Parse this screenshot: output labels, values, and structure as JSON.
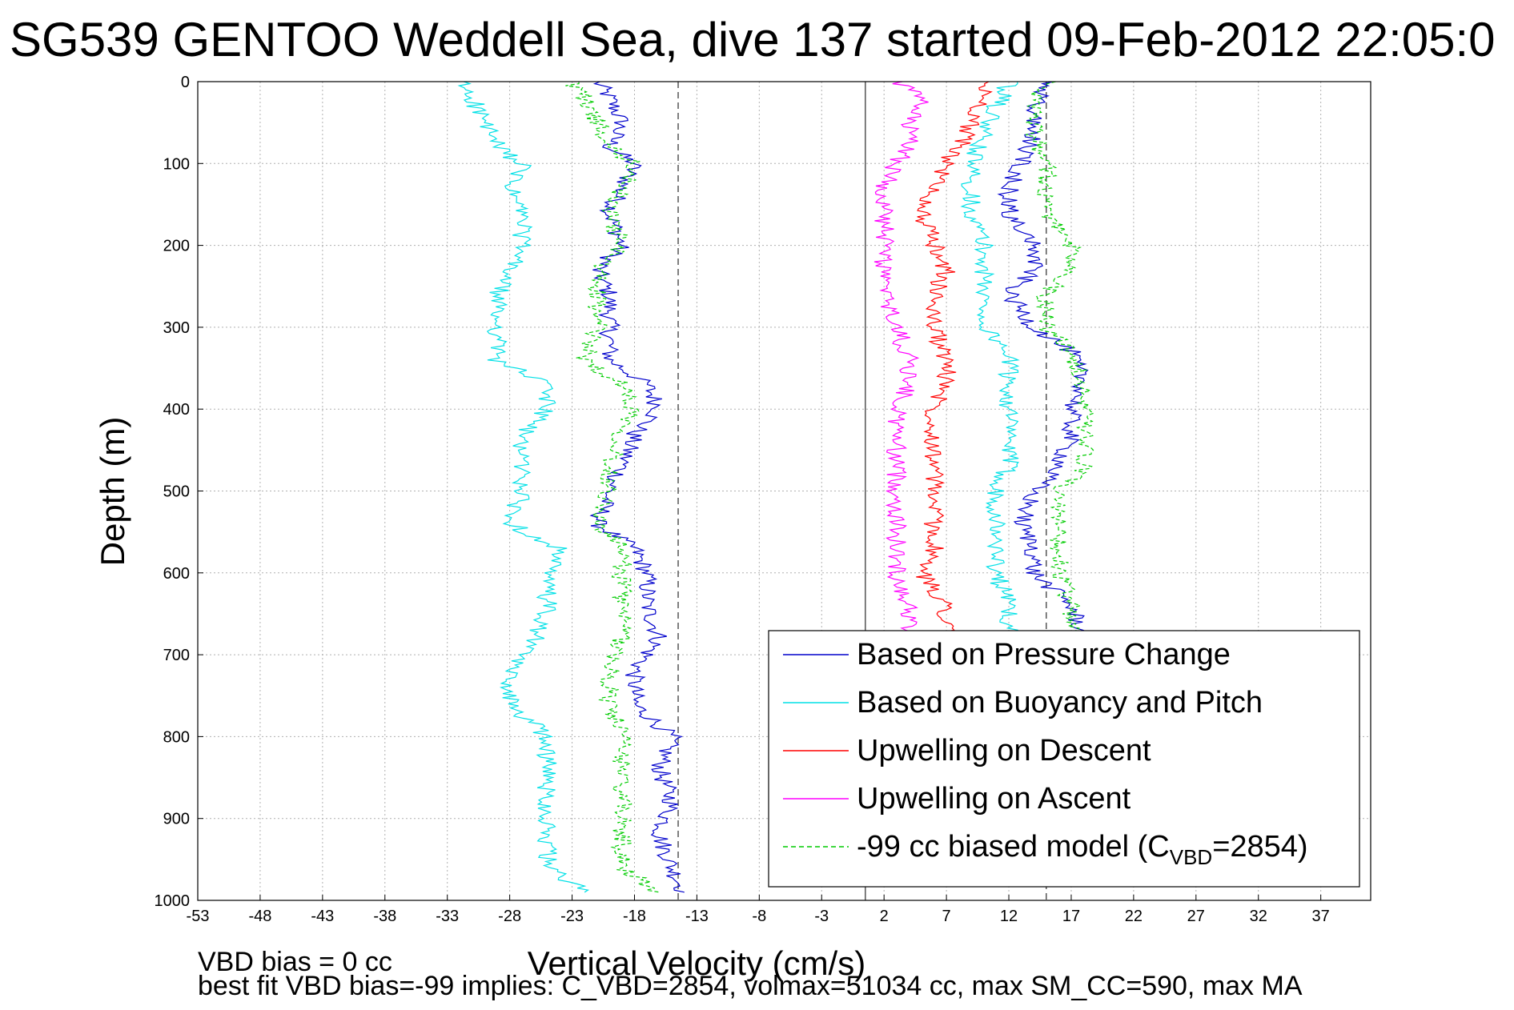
{
  "title": "SG539 GENTOO Weddell Sea, dive 137 started 09-Feb-2012 22:05:0",
  "footnote_line1": "VBD bias = 0 cc",
  "footnote_line2": "best fit VBD bias=-99 implies: C_VBD=2854, volmax=51034 cc, max SM_CC=590, max MA",
  "chart_data": {
    "type": "line",
    "xlabel": "Vertical Velocity (cm/s)",
    "ylabel": "Depth (m)",
    "xlim": [
      -53,
      41
    ],
    "ylim": [
      0,
      1000
    ],
    "y_reversed": true,
    "xticks": [
      -53,
      -48,
      -43,
      -38,
      -33,
      -28,
      -23,
      -18,
      -13,
      -8,
      -3,
      2,
      7,
      12,
      17,
      22,
      27,
      32,
      37
    ],
    "yticks": [
      0,
      100,
      200,
      300,
      400,
      500,
      600,
      700,
      800,
      900,
      1000
    ],
    "grid": true,
    "legend_position": "bottom-right",
    "reference_lines": [
      {
        "x": -14.5,
        "style": "dashed",
        "color": "#555555"
      },
      {
        "x": 0.5,
        "style": "solid",
        "color": "#555555"
      },
      {
        "x": 15,
        "style": "dashed",
        "color": "#555555"
      }
    ],
    "series": [
      {
        "name": "Based on Pressure Change",
        "color": "#0000cc",
        "style": "solid",
        "depth": [
          0,
          20,
          50,
          80,
          100,
          130,
          160,
          200,
          230,
          260,
          300,
          340,
          370,
          400,
          430,
          470,
          500,
          540,
          570,
          600,
          640,
          680,
          720,
          760,
          800,
          840,
          880,
          920,
          960,
          990
        ],
        "velocity": [
          -21,
          -20,
          -19,
          -20,
          -18,
          -19,
          -20,
          -19,
          -21,
          -20,
          -20,
          -20,
          -17,
          -16,
          -18,
          -19,
          -20,
          -21,
          -18,
          -17,
          -17,
          -16,
          -18,
          -18,
          -15,
          -16,
          -15,
          -16,
          -15,
          -14
        ]
      },
      {
        "name": "Based on Buoyancy and Pitch",
        "color": "#00e0e6",
        "style": "solid",
        "depth": [
          0,
          20,
          50,
          80,
          100,
          130,
          160,
          200,
          230,
          260,
          300,
          340,
          370,
          400,
          430,
          470,
          500,
          540,
          570,
          600,
          640,
          680,
          720,
          760,
          800,
          840,
          880,
          920,
          960,
          990
        ],
        "velocity": [
          -32,
          -31,
          -30,
          -29,
          -27,
          -28,
          -27,
          -27,
          -28,
          -29,
          -29,
          -29,
          -25,
          -25,
          -27,
          -27,
          -27,
          -28,
          -24,
          -25,
          -25,
          -26,
          -28,
          -28,
          -25,
          -25,
          -25,
          -25,
          -25,
          -22
        ]
      },
      {
        "name": "Upwelling on Descent",
        "color": "#ff0000",
        "style": "solid",
        "depth": [
          0,
          20,
          50,
          80,
          100,
          130,
          160,
          200,
          230,
          260,
          300,
          340,
          370,
          400,
          430,
          470,
          500,
          540,
          570,
          600,
          640,
          680
        ],
        "velocity": [
          10,
          10,
          9,
          8,
          7,
          6,
          5,
          6,
          7,
          6,
          6,
          7,
          7,
          6,
          6,
          6,
          6,
          6,
          6,
          5,
          7,
          7
        ]
      },
      {
        "name": "Upwelling on Ascent",
        "color": "#ff00ff",
        "style": "solid",
        "depth": [
          0,
          20,
          50,
          80,
          100,
          130,
          160,
          200,
          230,
          260,
          300,
          340,
          370,
          400,
          430,
          470,
          500,
          540,
          570,
          600,
          640,
          680
        ],
        "velocity": [
          3,
          5,
          4,
          4,
          3,
          2,
          2,
          2,
          2,
          2,
          3,
          4,
          4,
          3,
          3,
          3,
          3,
          3,
          3,
          3,
          4,
          4
        ]
      },
      {
        "name": "-99 cc biased model (C_VBD=2854)",
        "color": "#00cc00",
        "style": "dashed",
        "depth": [
          0,
          20,
          50,
          80,
          100,
          130,
          160,
          200,
          230,
          260,
          300,
          340,
          370,
          400,
          430,
          470,
          500,
          540,
          570,
          600,
          640,
          680,
          720,
          760,
          800,
          840,
          880,
          920,
          960,
          990
        ],
        "velocity": [
          -23,
          -22,
          -21,
          -20,
          -18,
          -19,
          -20,
          -19,
          -21,
          -21,
          -21,
          -22,
          -19,
          -18,
          -19,
          -20,
          -20,
          -21,
          -19,
          -19,
          -19,
          -19,
          -20,
          -20,
          -19,
          -19,
          -19,
          -19,
          -19,
          -16
        ]
      },
      {
        "name": "",
        "color": "#0000cc",
        "style": "solid",
        "depth": [
          0,
          30,
          60,
          100,
          130,
          160,
          200,
          230,
          260,
          300,
          330,
          370,
          400,
          430,
          470,
          500,
          540,
          570,
          600,
          640,
          680
        ],
        "velocity": [
          15,
          14,
          14,
          13,
          12,
          12,
          14,
          14,
          12,
          14,
          17,
          18,
          17,
          17,
          16,
          14,
          13,
          14,
          14,
          17,
          18
        ]
      },
      {
        "name": "",
        "color": "#00e0e6",
        "style": "solid",
        "depth": [
          0,
          30,
          60,
          100,
          130,
          160,
          200,
          230,
          260,
          300,
          330,
          370,
          400,
          430,
          470,
          500,
          540,
          570,
          600,
          640,
          680
        ],
        "velocity": [
          12,
          11,
          10,
          9,
          9,
          9,
          10,
          10,
          10,
          10,
          12,
          12,
          12,
          12,
          12,
          11,
          11,
          11,
          11,
          12,
          12
        ]
      },
      {
        "name": "",
        "color": "#00cc00",
        "style": "dashed",
        "depth": [
          0,
          30,
          60,
          100,
          130,
          160,
          200,
          230,
          260,
          300,
          330,
          370,
          400,
          430,
          470,
          500,
          540,
          570,
          600,
          640,
          680
        ],
        "velocity": [
          15,
          14,
          14,
          15,
          15,
          15,
          17,
          17,
          15,
          15,
          17,
          18,
          18,
          18,
          18,
          16,
          16,
          16,
          16,
          17,
          17
        ]
      }
    ],
    "legend_labels": [
      {
        "text": "Based on Pressure Change",
        "color": "#0000cc",
        "style": "solid"
      },
      {
        "text": "Based on Buoyancy and Pitch",
        "color": "#00e0e6",
        "style": "solid"
      },
      {
        "text": "Upwelling on Descent",
        "color": "#ff0000",
        "style": "solid"
      },
      {
        "text": "Upwelling on Ascent",
        "color": "#ff00ff",
        "style": "solid"
      },
      {
        "text": "-99 cc biased model (C",
        "sub": "VBD",
        "suffix": "=2854)",
        "color": "#00cc00",
        "style": "dashed"
      }
    ]
  }
}
